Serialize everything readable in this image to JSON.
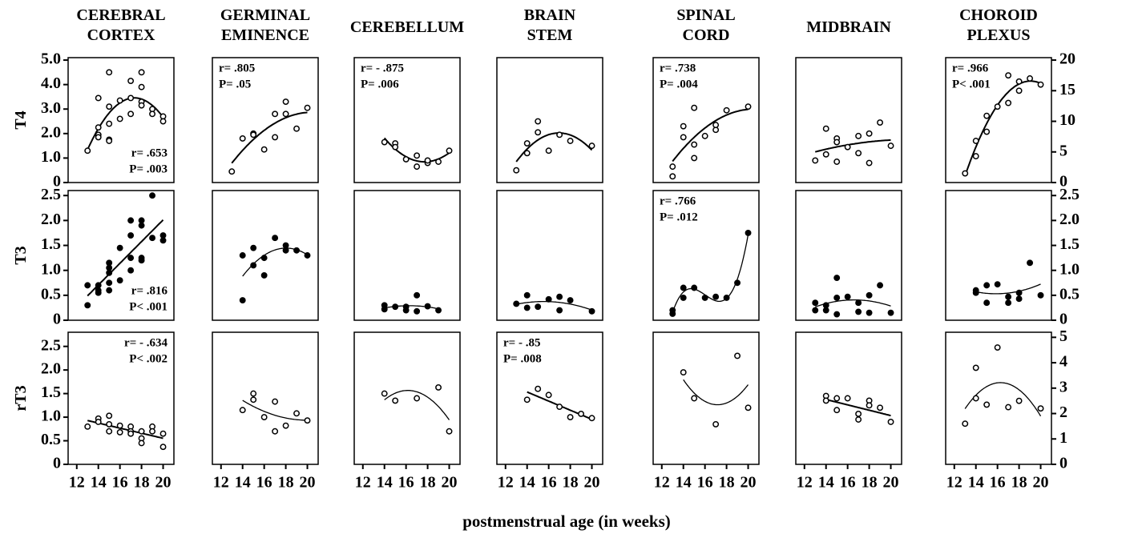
{
  "chart_data": {
    "type": "scatter-grid",
    "xlabel": "postmenstrual age (in weeks)",
    "xlim": [
      11.2,
      21
    ],
    "xticks": [
      12,
      14,
      16,
      18,
      20
    ],
    "columns": [
      {
        "title": [
          "CEREBRAL",
          "CORTEX"
        ]
      },
      {
        "title": [
          "GERMINAL",
          "EMINENCE"
        ]
      },
      {
        "title": [
          "CEREBELLUM"
        ]
      },
      {
        "title": [
          "BRAIN",
          "STEM"
        ]
      },
      {
        "title": [
          "SPINAL",
          "CORD"
        ]
      },
      {
        "title": [
          "MIDBRAIN"
        ]
      },
      {
        "title": [
          "CHOROID",
          "PLEXUS"
        ]
      }
    ],
    "rows": [
      {
        "label": "T4",
        "marker": "open",
        "ylim": [
          0,
          5.1
        ],
        "yticks": [
          0,
          {
            "value": 1,
            "label": "1.0"
          },
          {
            "value": 2,
            "label": "2.0"
          },
          {
            "value": 3,
            "label": "3.0"
          },
          {
            "value": 4,
            "label": "4.0"
          },
          {
            "value": 5,
            "label": "5.0"
          }
        ],
        "y2lim": [
          0,
          20.4
        ],
        "y2ticks": [
          0,
          5,
          10,
          15,
          20
        ]
      },
      {
        "label": "T3",
        "marker": "filled",
        "ylim": [
          0,
          2.6
        ],
        "yticks": [
          0,
          0.5,
          {
            "value": 1,
            "label": "1.0"
          },
          1.5,
          {
            "value": 2,
            "label": "2.0"
          },
          2.5
        ],
        "y2lim": [
          0,
          2.6
        ],
        "y2ticks": [
          0,
          0.5,
          {
            "value": 1,
            "label": "1.0"
          },
          1.5,
          {
            "value": 2,
            "label": "2.0"
          },
          2.5
        ]
      },
      {
        "label": "rT3",
        "marker": "open",
        "ylim": [
          0,
          2.8
        ],
        "yticks": [
          0,
          0.5,
          {
            "value": 1,
            "label": "1.0"
          },
          1.5,
          {
            "value": 2,
            "label": "2.0"
          },
          2.5
        ],
        "y2lim": [
          0,
          5.2
        ],
        "y2ticks": [
          0,
          1,
          2,
          3,
          4,
          5
        ]
      }
    ],
    "panels": [
      [
        {
          "x": [
            13,
            14,
            14,
            14,
            14,
            15,
            15,
            15,
            15,
            15,
            16,
            16,
            17,
            17,
            17,
            18,
            18,
            18,
            18,
            19,
            19,
            20,
            20
          ],
          "values": [
            1.3,
            3.45,
            2.25,
            1.95,
            1.85,
            4.5,
            3.1,
            2.4,
            1.75,
            1.7,
            3.35,
            2.6,
            4.15,
            3.45,
            2.8,
            4.5,
            3.9,
            3.3,
            3.15,
            3.0,
            2.8,
            2.7,
            2.5
          ],
          "fit": "quadratic",
          "annotation": [
            "r= .653",
            "P= .003"
          ],
          "annotation_corner": "bottom-right"
        },
        {
          "x": [
            13,
            14,
            15,
            15,
            16,
            17,
            17,
            18,
            18,
            19,
            20
          ],
          "values": [
            0.45,
            1.8,
            2.0,
            1.95,
            1.35,
            1.85,
            2.8,
            3.3,
            2.8,
            2.2,
            3.05
          ],
          "fit": "quadratic",
          "annotation": [
            "r= .805",
            "P= .05"
          ],
          "annotation_corner": "top-left"
        },
        {
          "x": [
            14,
            15,
            15,
            16,
            17,
            17,
            18,
            18,
            19,
            20
          ],
          "values": [
            1.65,
            1.6,
            1.45,
            0.95,
            1.1,
            0.65,
            0.8,
            0.9,
            0.85,
            1.3
          ],
          "fit": "quadratic",
          "annotation": [
            "r= - .875",
            "P= .006"
          ],
          "annotation_corner": "top-left"
        },
        {
          "x": [
            13,
            14,
            14,
            15,
            15,
            16,
            17,
            18,
            20
          ],
          "values": [
            0.5,
            1.6,
            1.2,
            2.5,
            2.05,
            1.3,
            1.95,
            1.7,
            1.5
          ],
          "fit": "quadratic"
        },
        {
          "x": [
            13,
            13,
            14,
            14,
            15,
            15,
            15,
            16,
            17,
            17,
            18,
            20
          ],
          "values": [
            0.65,
            0.25,
            2.3,
            1.85,
            3.05,
            1.55,
            1.0,
            1.9,
            2.15,
            2.35,
            2.95,
            3.1
          ],
          "fit": "quadratic",
          "annotation": [
            "r= .738",
            "P= .004"
          ],
          "annotation_corner": "top-left"
        },
        {
          "x": [
            13,
            14,
            14,
            15,
            15,
            15,
            16,
            17,
            17,
            18,
            18,
            19,
            20
          ],
          "values": [
            0.9,
            2.2,
            1.15,
            1.8,
            1.65,
            0.85,
            1.45,
            1.2,
            1.9,
            2.0,
            0.8,
            2.45,
            1.5
          ],
          "fit": "quadratic"
        },
        {
          "axis": "y2",
          "x": [
            13,
            14,
            14,
            15,
            15,
            16,
            17,
            17,
            18,
            18,
            19,
            20
          ],
          "values": [
            1.5,
            6.8,
            4.3,
            8.3,
            10.9,
            12.4,
            13,
            17.5,
            16.5,
            15,
            17,
            16
          ],
          "fit": "quadratic",
          "annotation": [
            "r= .966",
            "P< .001"
          ],
          "annotation_corner": "top-left"
        }
      ],
      [
        {
          "x": [
            13,
            13,
            14,
            14,
            14,
            15,
            15,
            15,
            15,
            15,
            16,
            16,
            17,
            17,
            17,
            17,
            18,
            18,
            18,
            18,
            19,
            19,
            20,
            20
          ],
          "values": [
            0.7,
            0.3,
            0.7,
            0.6,
            0.55,
            1.15,
            1.05,
            0.95,
            0.75,
            0.6,
            1.45,
            0.8,
            2.0,
            1.7,
            1.25,
            1.0,
            2.0,
            1.9,
            1.25,
            1.2,
            2.5,
            1.65,
            1.7,
            1.6
          ],
          "fit": "linear",
          "annotation": [
            "r= .816",
            "P< .001"
          ],
          "annotation_corner": "bottom-right"
        },
        {
          "x": [
            14,
            14,
            15,
            15,
            16,
            16,
            17,
            18,
            18,
            19,
            20
          ],
          "values": [
            1.3,
            0.4,
            1.45,
            1.1,
            0.9,
            1.25,
            1.65,
            1.5,
            1.4,
            1.4,
            1.3
          ],
          "fit": "quadratic"
        },
        {
          "x": [
            14,
            14,
            15,
            16,
            16,
            17,
            17,
            18,
            19
          ],
          "values": [
            0.3,
            0.22,
            0.27,
            0.27,
            0.2,
            0.5,
            0.18,
            0.28,
            0.2
          ],
          "fit": "quadratic"
        },
        {
          "x": [
            13,
            14,
            14,
            15,
            16,
            17,
            17,
            18,
            20
          ],
          "values": [
            0.33,
            0.5,
            0.25,
            0.27,
            0.42,
            0.47,
            0.2,
            0.4,
            0.18
          ],
          "fit": "quadratic"
        },
        {
          "x": [
            13,
            13,
            14,
            14,
            15,
            16,
            17,
            18,
            19,
            20
          ],
          "values": [
            0.2,
            0.13,
            0.65,
            0.45,
            0.65,
            0.45,
            0.47,
            0.45,
            0.75,
            1.75
          ],
          "fit": "cubic",
          "annotation": [
            "r= .766",
            "P= .012"
          ],
          "annotation_corner": "top-left"
        },
        {
          "x": [
            13,
            13,
            14,
            14,
            15,
            15,
            15,
            16,
            17,
            17,
            18,
            18,
            19,
            20
          ],
          "values": [
            0.35,
            0.2,
            0.3,
            0.2,
            0.85,
            0.45,
            0.12,
            0.47,
            0.35,
            0.17,
            0.5,
            0.15,
            0.7,
            0.15
          ],
          "fit": "quadratic"
        },
        {
          "axis": "y2",
          "x": [
            14,
            14,
            15,
            15,
            16,
            17,
            17,
            18,
            18,
            19,
            20
          ],
          "values": [
            0.6,
            0.55,
            0.7,
            0.35,
            0.72,
            0.47,
            0.35,
            0.55,
            0.43,
            1.15,
            0.5
          ],
          "fit": "quadratic"
        }
      ],
      [
        {
          "x": [
            13,
            14,
            14,
            15,
            15,
            15,
            16,
            16,
            17,
            17,
            17,
            18,
            18,
            18,
            19,
            19,
            20,
            20
          ],
          "values": [
            0.8,
            0.97,
            0.9,
            1.03,
            0.85,
            0.7,
            0.82,
            0.68,
            0.8,
            0.7,
            0.65,
            0.7,
            0.55,
            0.45,
            0.8,
            0.7,
            0.65,
            0.37
          ],
          "fit": "linear",
          "annotation": [
            "r= - .634",
            "P< .002"
          ],
          "annotation_corner": "top-right"
        },
        {
          "x": [
            14,
            15,
            15,
            16,
            17,
            17,
            18,
            19,
            20
          ],
          "values": [
            1.15,
            1.5,
            1.37,
            1.0,
            1.33,
            0.7,
            0.82,
            1.08,
            0.93
          ],
          "fit": "quadratic"
        },
        {
          "x": [
            14,
            15,
            17,
            19,
            20
          ],
          "values": [
            1.5,
            1.35,
            1.4,
            1.63,
            0.7
          ],
          "fit": "quadratic"
        },
        {
          "x": [
            14,
            15,
            16,
            17,
            18,
            19,
            20
          ],
          "values": [
            1.37,
            1.6,
            1.47,
            1.22,
            1.0,
            1.07,
            0.98
          ],
          "fit": "linear",
          "annotation": [
            "r= - .85",
            "P= .008"
          ],
          "annotation_corner": "top-left"
        },
        {
          "x": [
            14,
            15,
            17,
            19,
            20
          ],
          "values": [
            1.95,
            1.4,
            0.85,
            2.3,
            1.2
          ],
          "fit": "quadratic"
        },
        {
          "x": [
            14,
            14,
            15,
            15,
            16,
            17,
            17,
            18,
            18,
            19,
            20
          ],
          "values": [
            1.45,
            1.35,
            1.4,
            1.15,
            1.4,
            1.07,
            0.95,
            1.35,
            1.25,
            1.2,
            0.9
          ],
          "fit": "linear"
        },
        {
          "axis": "y2",
          "x": [
            13,
            14,
            14,
            15,
            16,
            17,
            18,
            20
          ],
          "values": [
            1.6,
            3.8,
            2.6,
            2.35,
            4.6,
            2.25,
            2.5,
            2.2
          ],
          "fit": "quadratic"
        }
      ]
    ]
  }
}
